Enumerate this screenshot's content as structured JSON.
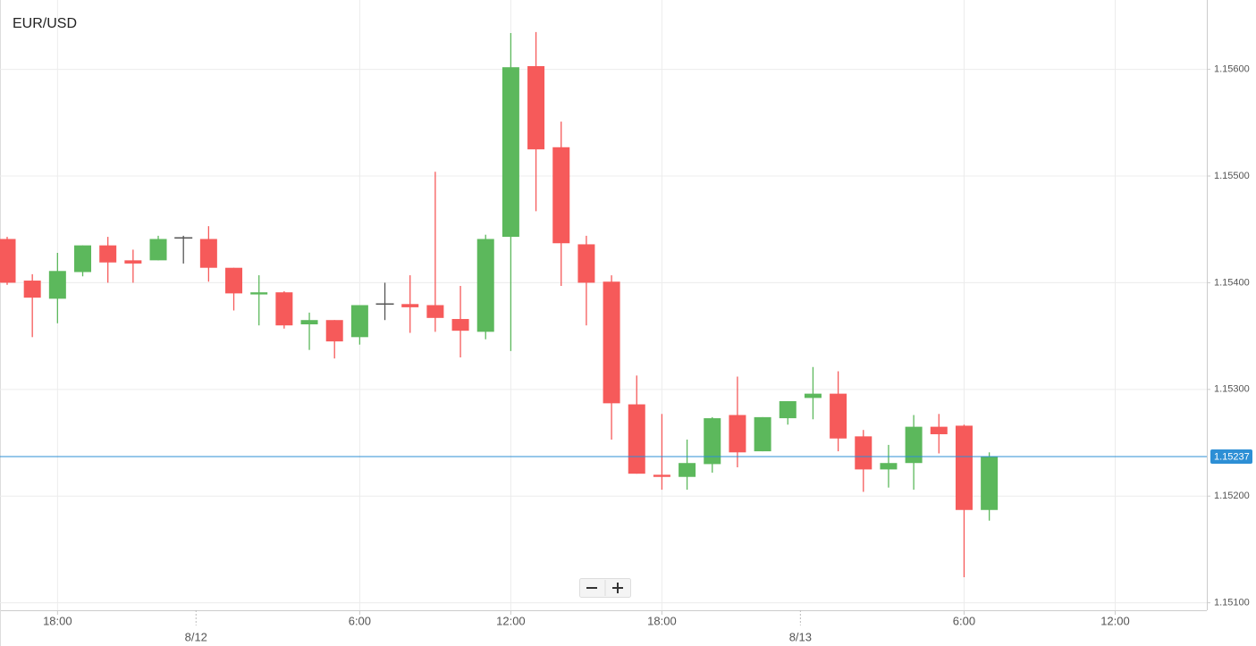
{
  "chart_data": {
    "type": "candlestick",
    "title": "EUR/USD",
    "categories": [
      null,
      null,
      "18:00",
      null,
      null,
      null,
      null,
      null,
      null,
      null,
      null,
      null,
      null,
      null,
      "6:00",
      null,
      null,
      null,
      null,
      null,
      "12:00",
      null,
      null,
      null,
      null,
      null,
      "18:00",
      null,
      null,
      null,
      null,
      null,
      null,
      null,
      null,
      null,
      null,
      null,
      "6:00",
      null,
      null,
      null,
      null,
      null,
      "12:00",
      null,
      null,
      null
    ],
    "date_labels": [
      null,
      null,
      null,
      null,
      null,
      null,
      null,
      null,
      "8/12",
      null,
      null,
      null,
      null,
      null,
      null,
      null,
      null,
      null,
      null,
      null,
      null,
      null,
      null,
      null,
      null,
      null,
      null,
      null,
      null,
      null,
      null,
      null,
      "8/13",
      null,
      null,
      null,
      null,
      null,
      null,
      null,
      null,
      null,
      null,
      null,
      null,
      null,
      null,
      null
    ],
    "open": [
      1.15441,
      1.15402,
      1.15385,
      1.1541,
      1.15435,
      1.15421,
      1.15421,
      1.15442,
      1.15441,
      1.15414,
      1.15389,
      1.15391,
      1.15361,
      1.15365,
      1.15349,
      1.1538,
      1.1538,
      1.15379,
      1.15366,
      1.15354,
      1.15443,
      1.15603,
      1.15527,
      1.15436,
      1.15401,
      1.15286,
      1.1522,
      1.15218,
      1.1523,
      1.15276,
      1.15242,
      1.15273,
      1.15292,
      1.15296,
      1.15256,
      1.15225,
      1.15231,
      1.15265,
      1.15266,
      1.15187,
      null,
      null,
      null,
      null,
      null,
      null,
      null,
      null
    ],
    "high": [
      1.15443,
      1.15408,
      1.15428,
      1.15435,
      1.15443,
      1.15431,
      1.15444,
      1.15444,
      1.15453,
      1.15414,
      1.15407,
      1.15392,
      1.15372,
      1.15365,
      1.15379,
      1.154,
      1.15407,
      1.15504,
      1.15397,
      1.15445,
      1.15634,
      1.15635,
      1.15551,
      1.15444,
      1.15407,
      1.15313,
      1.15277,
      1.15253,
      1.15274,
      1.15312,
      1.15274,
      1.15289,
      1.15321,
      1.15317,
      1.15262,
      1.15248,
      1.15276,
      1.15277,
      1.15267,
      1.15241,
      null,
      null,
      null,
      null,
      null,
      null,
      null,
      null
    ],
    "low": [
      1.15398,
      1.15349,
      1.15362,
      1.15406,
      1.154,
      1.154,
      1.15421,
      1.15418,
      1.15401,
      1.15374,
      1.1536,
      1.15357,
      1.15337,
      1.15329,
      1.15342,
      1.15365,
      1.15353,
      1.15354,
      1.1533,
      1.15347,
      1.15336,
      1.15467,
      1.15397,
      1.1536,
      1.15253,
      1.15221,
      1.15206,
      1.15206,
      1.15222,
      1.15227,
      1.15242,
      1.15267,
      1.15272,
      1.15242,
      1.15204,
      1.15208,
      1.15206,
      1.1524,
      1.15124,
      1.15177,
      null,
      null,
      null,
      null,
      null,
      null,
      null,
      null
    ],
    "close": [
      1.154,
      1.15386,
      1.15411,
      1.15435,
      1.15419,
      1.15418,
      1.15441,
      1.15442,
      1.15414,
      1.1539,
      1.15391,
      1.1536,
      1.15365,
      1.15345,
      1.15379,
      1.1538,
      1.15377,
      1.15367,
      1.15355,
      1.15441,
      1.15602,
      1.15525,
      1.15437,
      1.154,
      1.15287,
      1.15221,
      1.15218,
      1.15231,
      1.15273,
      1.15241,
      1.15274,
      1.15289,
      1.15296,
      1.15254,
      1.15225,
      1.15231,
      1.15265,
      1.15258,
      1.15187,
      1.15237,
      null,
      null,
      null,
      null,
      null,
      null,
      null,
      null
    ],
    "last_price": 1.15237,
    "ylim": [
      1.15093,
      1.15665
    ],
    "yticks": [
      {
        "value": 1.151,
        "label": "1.15100"
      },
      {
        "value": 1.152,
        "label": "1.15200"
      },
      {
        "value": 1.153,
        "label": "1.15300"
      },
      {
        "value": 1.154,
        "label": "1.15400"
      },
      {
        "value": 1.155,
        "label": "1.15500"
      },
      {
        "value": 1.156,
        "label": "1.15600"
      }
    ],
    "grid": true,
    "up_color": "#5cb85c",
    "down_color": "#f65a5a",
    "doji_color": "#555555",
    "last_price_color": "#2d8fd5"
  }
}
